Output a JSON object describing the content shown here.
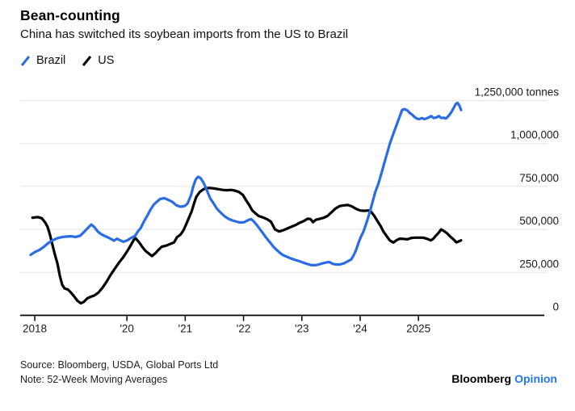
{
  "header": {
    "title": "Bean-counting",
    "subtitle": "China has switched its soybean imports from the US to Brazil"
  },
  "legend": {
    "items": [
      {
        "label": "Brazil",
        "color": "#2a6ce5"
      },
      {
        "label": "US",
        "color": "#000000"
      }
    ]
  },
  "footer": {
    "source": "Source: Bloomberg, USDA, Global Ports Ltd",
    "note": "Note: 52-Week Moving Averages",
    "brand_black": "Bloomberg",
    "brand_blue": "Opinion",
    "brand_blue_color": "#2277ee"
  },
  "chart_data": {
    "type": "line",
    "title": "Bean-counting",
    "unit": "tonnes",
    "grid": "horizontal",
    "legend_position": "top-left",
    "colors": {
      "brazil": "#2a6ce5",
      "us": "#000000",
      "gridline": "#e4e4e4",
      "axis": "#000000"
    },
    "x_axis": {
      "range": [
        2018.17,
        2027.2
      ],
      "ticks": [
        {
          "t": 2018.42,
          "label": "2018"
        },
        {
          "t": 2020,
          "label": "'20"
        },
        {
          "t": 2021,
          "label": "'21"
        },
        {
          "t": 2022,
          "label": "'22"
        },
        {
          "t": 2023,
          "label": "'23"
        },
        {
          "t": 2024,
          "label": "'24"
        },
        {
          "t": 2025,
          "label": "2025"
        }
      ]
    },
    "y_axis": {
      "range": [
        0,
        1250000
      ],
      "ticks": [
        {
          "v": 0,
          "label": "0"
        },
        {
          "v": 250000,
          "label": "250,000"
        },
        {
          "v": 500000,
          "label": "500,000"
        },
        {
          "v": 750000,
          "label": "750,000"
        },
        {
          "v": 1000000,
          "label": "1,000,000"
        },
        {
          "v": 1250000,
          "label": "1,250,000 tonnes"
        }
      ]
    },
    "series": [
      {
        "name": "Brazil",
        "color": "#2a6ce5",
        "points": [
          [
            2018.35,
            352000
          ],
          [
            2018.42,
            368000
          ],
          [
            2018.5,
            380000
          ],
          [
            2018.58,
            400000
          ],
          [
            2018.65,
            420000
          ],
          [
            2018.72,
            435000
          ],
          [
            2018.8,
            448000
          ],
          [
            2018.88,
            455000
          ],
          [
            2018.96,
            458000
          ],
          [
            2019.04,
            460000
          ],
          [
            2019.12,
            456000
          ],
          [
            2019.2,
            464000
          ],
          [
            2019.28,
            490000
          ],
          [
            2019.35,
            515000
          ],
          [
            2019.39,
            528000
          ],
          [
            2019.44,
            514000
          ],
          [
            2019.5,
            488000
          ],
          [
            2019.56,
            472000
          ],
          [
            2019.63,
            460000
          ],
          [
            2019.71,
            448000
          ],
          [
            2019.78,
            434000
          ],
          [
            2019.83,
            446000
          ],
          [
            2019.88,
            437000
          ],
          [
            2019.94,
            428000
          ],
          [
            2020.01,
            437000
          ],
          [
            2020.08,
            452000
          ],
          [
            2020.14,
            462000
          ],
          [
            2020.18,
            484000
          ],
          [
            2020.24,
            510000
          ],
          [
            2020.29,
            545000
          ],
          [
            2020.35,
            580000
          ],
          [
            2020.4,
            612000
          ],
          [
            2020.46,
            644000
          ],
          [
            2020.51,
            660000
          ],
          [
            2020.57,
            677000
          ],
          [
            2020.64,
            682000
          ],
          [
            2020.71,
            672000
          ],
          [
            2020.78,
            660000
          ],
          [
            2020.85,
            640000
          ],
          [
            2020.92,
            632000
          ],
          [
            2020.99,
            636000
          ],
          [
            2021.04,
            650000
          ],
          [
            2021.1,
            700000
          ],
          [
            2021.14,
            752000
          ],
          [
            2021.18,
            790000
          ],
          [
            2021.22,
            806000
          ],
          [
            2021.26,
            800000
          ],
          [
            2021.31,
            775000
          ],
          [
            2021.35,
            745000
          ],
          [
            2021.39,
            712000
          ],
          [
            2021.43,
            680000
          ],
          [
            2021.49,
            650000
          ],
          [
            2021.54,
            622000
          ],
          [
            2021.6,
            600000
          ],
          [
            2021.67,
            578000
          ],
          [
            2021.74,
            562000
          ],
          [
            2021.81,
            552000
          ],
          [
            2021.88,
            545000
          ],
          [
            2021.94,
            540000
          ],
          [
            2022.01,
            542000
          ],
          [
            2022.07,
            552000
          ],
          [
            2022.13,
            560000
          ],
          [
            2022.18,
            545000
          ],
          [
            2022.24,
            520000
          ],
          [
            2022.29,
            497000
          ],
          [
            2022.35,
            470000
          ],
          [
            2022.4,
            447000
          ],
          [
            2022.46,
            422000
          ],
          [
            2022.51,
            400000
          ],
          [
            2022.57,
            380000
          ],
          [
            2022.63,
            362000
          ],
          [
            2022.68,
            350000
          ],
          [
            2022.75,
            340000
          ],
          [
            2022.82,
            330000
          ],
          [
            2022.89,
            322000
          ],
          [
            2022.96,
            315000
          ],
          [
            2023.03,
            306000
          ],
          [
            2023.1,
            298000
          ],
          [
            2023.17,
            292000
          ],
          [
            2023.24,
            292000
          ],
          [
            2023.29,
            296000
          ],
          [
            2023.35,
            302000
          ],
          [
            2023.42,
            308000
          ],
          [
            2023.47,
            310000
          ],
          [
            2023.53,
            300000
          ],
          [
            2023.58,
            296000
          ],
          [
            2023.65,
            296000
          ],
          [
            2023.72,
            302000
          ],
          [
            2023.79,
            315000
          ],
          [
            2023.85,
            326000
          ],
          [
            2023.89,
            350000
          ],
          [
            2023.93,
            380000
          ],
          [
            2023.97,
            420000
          ],
          [
            2024.01,
            455000
          ],
          [
            2024.06,
            490000
          ],
          [
            2024.1,
            530000
          ],
          [
            2024.14,
            572000
          ],
          [
            2024.18,
            618000
          ],
          [
            2024.22,
            668000
          ],
          [
            2024.26,
            718000
          ],
          [
            2024.31,
            762000
          ],
          [
            2024.35,
            808000
          ],
          [
            2024.39,
            856000
          ],
          [
            2024.43,
            905000
          ],
          [
            2024.47,
            952000
          ],
          [
            2024.51,
            1000000
          ],
          [
            2024.56,
            1048000
          ],
          [
            2024.6,
            1085000
          ],
          [
            2024.64,
            1122000
          ],
          [
            2024.68,
            1158000
          ],
          [
            2024.72,
            1195000
          ],
          [
            2024.76,
            1200000
          ],
          [
            2024.81,
            1192000
          ],
          [
            2024.85,
            1178000
          ],
          [
            2024.89,
            1168000
          ],
          [
            2024.93,
            1155000
          ],
          [
            2024.97,
            1145000
          ],
          [
            2025.01,
            1142000
          ],
          [
            2025.06,
            1148000
          ],
          [
            2025.1,
            1142000
          ],
          [
            2025.14,
            1146000
          ],
          [
            2025.18,
            1152000
          ],
          [
            2025.22,
            1160000
          ],
          [
            2025.26,
            1148000
          ],
          [
            2025.31,
            1152000
          ],
          [
            2025.35,
            1160000
          ],
          [
            2025.39,
            1148000
          ],
          [
            2025.43,
            1150000
          ],
          [
            2025.47,
            1145000
          ],
          [
            2025.51,
            1158000
          ],
          [
            2025.56,
            1180000
          ],
          [
            2025.6,
            1205000
          ],
          [
            2025.64,
            1230000
          ],
          [
            2025.67,
            1237000
          ],
          [
            2025.7,
            1222000
          ],
          [
            2025.73,
            1195000
          ]
        ]
      },
      {
        "name": "US",
        "color": "#000000",
        "points": [
          [
            2018.38,
            568000
          ],
          [
            2018.47,
            572000
          ],
          [
            2018.54,
            565000
          ],
          [
            2018.6,
            540000
          ],
          [
            2018.64,
            515000
          ],
          [
            2018.68,
            470000
          ],
          [
            2018.72,
            415000
          ],
          [
            2018.76,
            360000
          ],
          [
            2018.81,
            300000
          ],
          [
            2018.85,
            230000
          ],
          [
            2018.89,
            178000
          ],
          [
            2018.93,
            157000
          ],
          [
            2018.99,
            150000
          ],
          [
            2019.04,
            133000
          ],
          [
            2019.1,
            108000
          ],
          [
            2019.15,
            85000
          ],
          [
            2019.21,
            70000
          ],
          [
            2019.26,
            78000
          ],
          [
            2019.32,
            98000
          ],
          [
            2019.38,
            108000
          ],
          [
            2019.44,
            115000
          ],
          [
            2019.51,
            132000
          ],
          [
            2019.58,
            160000
          ],
          [
            2019.65,
            195000
          ],
          [
            2019.72,
            235000
          ],
          [
            2019.79,
            270000
          ],
          [
            2019.86,
            305000
          ],
          [
            2019.93,
            335000
          ],
          [
            2020.0,
            370000
          ],
          [
            2020.07,
            410000
          ],
          [
            2020.12,
            440000
          ],
          [
            2020.15,
            448000
          ],
          [
            2020.21,
            425000
          ],
          [
            2020.26,
            400000
          ],
          [
            2020.32,
            375000
          ],
          [
            2020.38,
            358000
          ],
          [
            2020.43,
            345000
          ],
          [
            2020.49,
            362000
          ],
          [
            2020.54,
            380000
          ],
          [
            2020.6,
            400000
          ],
          [
            2020.67,
            405000
          ],
          [
            2020.74,
            415000
          ],
          [
            2020.81,
            425000
          ],
          [
            2020.86,
            455000
          ],
          [
            2020.92,
            470000
          ],
          [
            2020.97,
            495000
          ],
          [
            2021.01,
            525000
          ],
          [
            2021.06,
            565000
          ],
          [
            2021.11,
            605000
          ],
          [
            2021.15,
            650000
          ],
          [
            2021.19,
            690000
          ],
          [
            2021.25,
            718000
          ],
          [
            2021.31,
            733000
          ],
          [
            2021.36,
            740000
          ],
          [
            2021.43,
            741000
          ],
          [
            2021.5,
            738000
          ],
          [
            2021.57,
            734000
          ],
          [
            2021.64,
            730000
          ],
          [
            2021.71,
            728000
          ],
          [
            2021.78,
            730000
          ],
          [
            2021.85,
            726000
          ],
          [
            2021.92,
            718000
          ],
          [
            2021.99,
            700000
          ],
          [
            2022.04,
            672000
          ],
          [
            2022.1,
            640000
          ],
          [
            2022.15,
            610000
          ],
          [
            2022.21,
            592000
          ],
          [
            2022.26,
            578000
          ],
          [
            2022.33,
            570000
          ],
          [
            2022.4,
            560000
          ],
          [
            2022.47,
            545000
          ],
          [
            2022.54,
            500000
          ],
          [
            2022.61,
            488000
          ],
          [
            2022.68,
            495000
          ],
          [
            2022.75,
            505000
          ],
          [
            2022.82,
            515000
          ],
          [
            2022.89,
            525000
          ],
          [
            2022.96,
            538000
          ],
          [
            2023.03,
            548000
          ],
          [
            2023.1,
            562000
          ],
          [
            2023.15,
            560000
          ],
          [
            2023.19,
            542000
          ],
          [
            2023.24,
            556000
          ],
          [
            2023.31,
            562000
          ],
          [
            2023.38,
            568000
          ],
          [
            2023.44,
            578000
          ],
          [
            2023.51,
            600000
          ],
          [
            2023.58,
            622000
          ],
          [
            2023.65,
            636000
          ],
          [
            2023.72,
            640000
          ],
          [
            2023.79,
            642000
          ],
          [
            2023.86,
            634000
          ],
          [
            2023.93,
            620000
          ],
          [
            2024.0,
            610000
          ],
          [
            2024.07,
            608000
          ],
          [
            2024.14,
            610000
          ],
          [
            2024.18,
            606000
          ],
          [
            2024.24,
            580000
          ],
          [
            2024.29,
            552000
          ],
          [
            2024.35,
            520000
          ],
          [
            2024.4,
            488000
          ],
          [
            2024.46,
            458000
          ],
          [
            2024.51,
            435000
          ],
          [
            2024.57,
            424000
          ],
          [
            2024.63,
            438000
          ],
          [
            2024.68,
            446000
          ],
          [
            2024.74,
            445000
          ],
          [
            2024.81,
            442000
          ],
          [
            2024.88,
            450000
          ],
          [
            2024.94,
            452000
          ],
          [
            2025.01,
            452000
          ],
          [
            2025.08,
            452000
          ],
          [
            2025.15,
            445000
          ],
          [
            2025.21,
            436000
          ],
          [
            2025.25,
            444000
          ],
          [
            2025.29,
            460000
          ],
          [
            2025.35,
            482000
          ],
          [
            2025.39,
            500000
          ],
          [
            2025.43,
            492000
          ],
          [
            2025.49,
            478000
          ],
          [
            2025.54,
            460000
          ],
          [
            2025.6,
            442000
          ],
          [
            2025.65,
            425000
          ],
          [
            2025.69,
            430000
          ],
          [
            2025.73,
            436000
          ]
        ]
      }
    ]
  }
}
